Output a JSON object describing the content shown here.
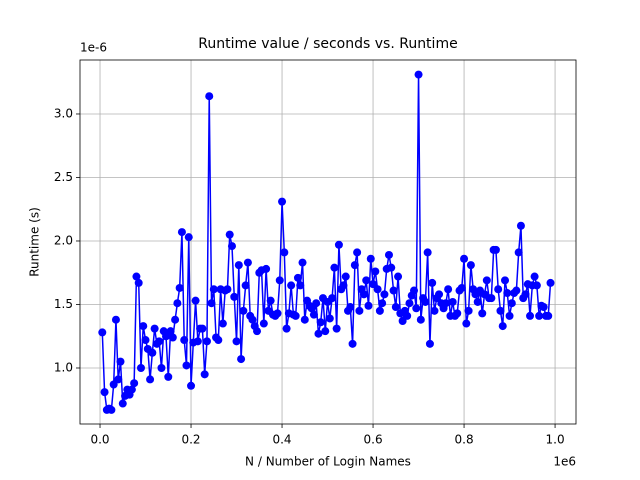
{
  "chart_data": {
    "type": "line",
    "title": "Runtime value / seconds vs. Runtime",
    "xlabel": "N / Number of Login Names",
    "ylabel": "Runtime (s)",
    "x_offset_label": "1e6",
    "y_offset_label": "1e-6",
    "color": "blue",
    "grid": true,
    "xlim": [
      -44000,
      1046000
    ],
    "ylim": [
      5.59e-07,
      3.425e-06
    ],
    "xticks": [
      {
        "value": 0,
        "label": "0.0"
      },
      {
        "value": 200000,
        "label": "0.2"
      },
      {
        "value": 400000,
        "label": "0.4"
      },
      {
        "value": 600000,
        "label": "0.6"
      },
      {
        "value": 800000,
        "label": "0.8"
      },
      {
        "value": 1000000,
        "label": "1.0"
      }
    ],
    "yticks": [
      {
        "value": 1e-06,
        "label": "1.0"
      },
      {
        "value": 1.5e-06,
        "label": "1.5"
      },
      {
        "value": 2e-06,
        "label": "2.0"
      },
      {
        "value": 2.5e-06,
        "label": "2.5"
      },
      {
        "value": 3e-06,
        "label": "3.0"
      }
    ],
    "x": [
      5000,
      10000,
      15000,
      20000,
      25000,
      30000,
      35000,
      40000,
      45000,
      50000,
      55000,
      60000,
      65000,
      70000,
      75000,
      80000,
      85000,
      90000,
      95000,
      100000,
      105000,
      110000,
      115000,
      120000,
      125000,
      130000,
      135000,
      140000,
      145000,
      150000,
      155000,
      160000,
      165000,
      170000,
      175000,
      180000,
      185000,
      190000,
      195000,
      200000,
      205000,
      210000,
      215000,
      220000,
      225000,
      230000,
      235000,
      240000,
      245000,
      250000,
      255000,
      260000,
      265000,
      270000,
      275000,
      280000,
      285000,
      290000,
      295000,
      300000,
      305000,
      310000,
      315000,
      320000,
      325000,
      330000,
      335000,
      340000,
      345000,
      350000,
      355000,
      360000,
      365000,
      370000,
      375000,
      380000,
      385000,
      390000,
      395000,
      400000,
      405000,
      410000,
      415000,
      420000,
      425000,
      430000,
      435000,
      440000,
      445000,
      450000,
      455000,
      460000,
      465000,
      470000,
      475000,
      480000,
      485000,
      490000,
      495000,
      500000,
      505000,
      510000,
      515000,
      520000,
      525000,
      530000,
      535000,
      540000,
      545000,
      550000,
      555000,
      560000,
      565000,
      570000,
      575000,
      580000,
      585000,
      590000,
      595000,
      600000,
      605000,
      610000,
      615000,
      620000,
      625000,
      630000,
      635000,
      640000,
      645000,
      650000,
      655000,
      660000,
      665000,
      670000,
      675000,
      680000,
      685000,
      690000,
      695000,
      700000,
      705000,
      710000,
      715000,
      720000,
      725000,
      730000,
      735000,
      740000,
      745000,
      750000,
      755000,
      760000,
      765000,
      770000,
      775000,
      780000,
      785000,
      790000,
      795000,
      800000,
      805000,
      810000,
      815000,
      820000,
      825000,
      830000,
      835000,
      840000,
      845000,
      850000,
      855000,
      860000,
      865000,
      870000,
      875000,
      880000,
      885000,
      890000,
      895000,
      900000,
      905000,
      910000,
      915000,
      920000,
      925000,
      930000,
      935000,
      940000,
      945000,
      950000,
      955000,
      960000,
      965000,
      970000,
      975000,
      980000,
      985000,
      990000
    ],
    "values": [
      1.28e-06,
      8.1e-07,
      6.7e-07,
      6.8e-07,
      6.7e-07,
      8.7e-07,
      1.38e-06,
      9.1e-07,
      1.05e-06,
      7.2e-07,
      7.8e-07,
      8.3e-07,
      7.9e-07,
      8.3e-07,
      8.8e-07,
      1.72e-06,
      1.67e-06,
      1e-06,
      1.33e-06,
      1.22e-06,
      1.15e-06,
      9.1e-07,
      1.12e-06,
      1.31e-06,
      1.19e-06,
      1.21e-06,
      1e-06,
      1.29e-06,
      1.25e-06,
      9.3e-07,
      1.29e-06,
      1.24e-06,
      1.38e-06,
      1.51e-06,
      1.63e-06,
      2.07e-06,
      1.22e-06,
      1.02e-06,
      2.03e-06,
      8.6e-07,
      1.2e-06,
      1.53e-06,
      1.21e-06,
      1.31e-06,
      1.31e-06,
      9.5e-07,
      1.21e-06,
      3.14e-06,
      1.51e-06,
      1.62e-06,
      1.24e-06,
      1.22e-06,
      1.62e-06,
      1.35e-06,
      1.61e-06,
      1.62e-06,
      2.05e-06,
      1.96e-06,
      1.56e-06,
      1.21e-06,
      1.81e-06,
      1.07e-06,
      1.45e-06,
      1.65e-06,
      1.83e-06,
      1.41e-06,
      1.38e-06,
      1.33e-06,
      1.29e-06,
      1.75e-06,
      1.77e-06,
      1.35e-06,
      1.78e-06,
      1.45e-06,
      1.53e-06,
      1.42e-06,
      1.41e-06,
      1.43e-06,
      1.69e-06,
      2.31e-06,
      1.91e-06,
      1.31e-06,
      1.43e-06,
      1.65e-06,
      1.42e-06,
      1.41e-06,
      1.71e-06,
      1.65e-06,
      1.83e-06,
      1.38e-06,
      1.53e-06,
      1.49e-06,
      1.47e-06,
      1.42e-06,
      1.51e-06,
      1.27e-06,
      1.36e-06,
      1.55e-06,
      1.29e-06,
      1.52e-06,
      1.39e-06,
      1.55e-06,
      1.79e-06,
      1.31e-06,
      1.97e-06,
      1.62e-06,
      1.65e-06,
      1.72e-06,
      1.45e-06,
      1.48e-06,
      1.19e-06,
      1.81e-06,
      1.91e-06,
      1.45e-06,
      1.62e-06,
      1.58e-06,
      1.69e-06,
      1.49e-06,
      1.86e-06,
      1.66e-06,
      1.76e-06,
      1.62e-06,
      1.45e-06,
      1.51e-06,
      1.58e-06,
      1.78e-06,
      1.89e-06,
      1.79e-06,
      1.61e-06,
      1.48e-06,
      1.72e-06,
      1.43e-06,
      1.37e-06,
      1.45e-06,
      1.41e-06,
      1.51e-06,
      1.57e-06,
      1.61e-06,
      1.47e-06,
      3.31e-06,
      1.38e-06,
      1.55e-06,
      1.52e-06,
      1.91e-06,
      1.19e-06,
      1.67e-06,
      1.45e-06,
      1.55e-06,
      1.58e-06,
      1.51e-06,
      1.47e-06,
      1.51e-06,
      1.62e-06,
      1.41e-06,
      1.52e-06,
      1.41e-06,
      1.43e-06,
      1.61e-06,
      1.63e-06,
      1.86e-06,
      1.35e-06,
      1.45e-06,
      1.81e-06,
      1.62e-06,
      1.58e-06,
      1.52e-06,
      1.61e-06,
      1.43e-06,
      1.58e-06,
      1.69e-06,
      1.55e-06,
      1.55e-06,
      1.93e-06,
      1.93e-06,
      1.62e-06,
      1.45e-06,
      1.33e-06,
      1.69e-06,
      1.59e-06,
      1.41e-06,
      1.51e-06,
      1.59e-06,
      1.61e-06,
      1.91e-06,
      2.12e-06,
      1.55e-06,
      1.58e-06,
      1.66e-06,
      1.41e-06,
      1.65e-06,
      1.72e-06,
      1.65e-06,
      1.41e-06,
      1.49e-06,
      1.48e-06,
      1.41e-06,
      1.41e-06,
      1.67e-06
    ]
  }
}
